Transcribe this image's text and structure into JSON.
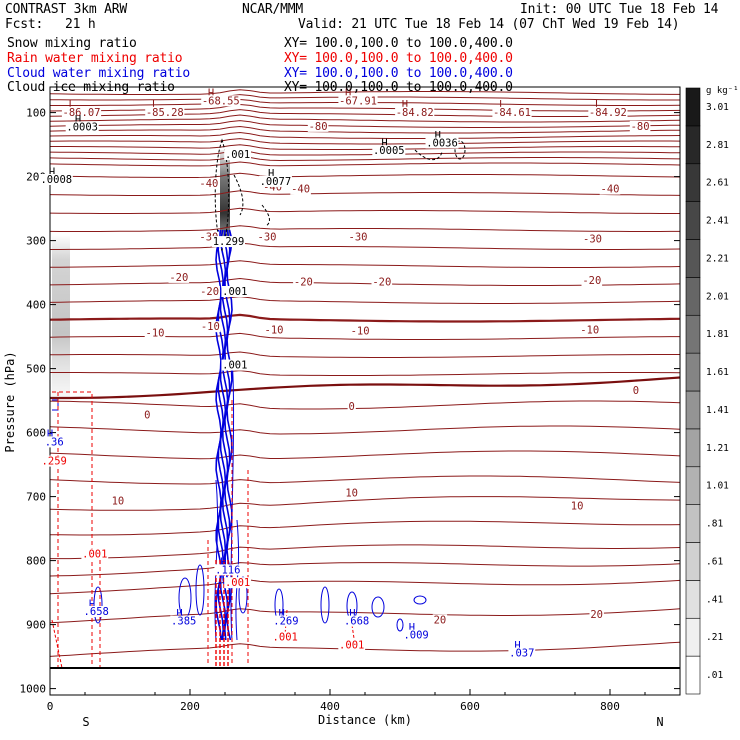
{
  "header": {
    "model": "CONTRAST  3km ARW",
    "center": "NCAR/MMM",
    "init": "Init: 00 UTC Tue 18 Feb 14",
    "fcst_label": "Fcst:",
    "fcst_value": "21 h",
    "valid": "Valid: 21 UTC Tue 18 Feb 14 (07 ChT Wed 19 Feb 14)"
  },
  "legend": [
    {
      "label": "Snow mixing ratio",
      "xy": "",
      "color": "#000000"
    },
    {
      "label": "Rain water mixing ratio",
      "xy": "XY= 100.0,100.0 to 100.0,400.0",
      "color": "#ee0000"
    },
    {
      "label": "Cloud water mixing ratio",
      "xy": "XY= 100.0,100.0 to 100.0,400.0",
      "color": "#0000dd"
    },
    {
      "label": "Cloud ice mixing ratio",
      "xy": "XY= 100.0,100.0 to 100.0,400.0",
      "color": "#000000"
    }
  ],
  "snow_xy": "XY= 100.0,100.0 to 100.0,400.0",
  "chart_data": {
    "type": "contour-cross-section",
    "xlabel": "Distance (km)",
    "ylabel": "Pressure (hPa)",
    "xlim": [
      0,
      900
    ],
    "ylim": [
      1010,
      60
    ],
    "x_ticks": [
      0,
      200,
      400,
      600,
      800
    ],
    "y_ticks": [
      100,
      200,
      300,
      400,
      500,
      600,
      700,
      800,
      900,
      1000
    ],
    "end_labels": {
      "left": "S",
      "right": "N"
    },
    "colorbar": {
      "unit": "g kg⁻¹",
      "levels": [
        ".01",
        ".21",
        ".41",
        ".61",
        ".81",
        "1.01",
        "1.21",
        "1.41",
        "1.61",
        "1.81",
        "2.01",
        "2.21",
        "2.41",
        "2.61",
        "2.81",
        "3.01"
      ]
    },
    "temperature_contours": [
      {
        "label": "-80",
        "label_x": 383,
        "label_p": 127
      },
      {
        "label": "-80",
        "label_x": 843,
        "label_p": 127
      },
      {
        "label": "-40",
        "label_x": 227,
        "label_p": 216
      },
      {
        "label": "-40",
        "label_x": 318,
        "label_p": 222
      },
      {
        "label": "-40",
        "label_x": 358,
        "label_p": 225
      },
      {
        "label": "-40",
        "label_x": 800,
        "label_p": 225
      },
      {
        "label": "-30",
        "label_x": 227,
        "label_p": 300
      },
      {
        "label": "-30",
        "label_x": 310,
        "label_p": 300
      },
      {
        "label": "-30",
        "label_x": 440,
        "label_p": 300
      },
      {
        "label": "-30",
        "label_x": 775,
        "label_p": 303
      },
      {
        "label": "-20",
        "label_x": 184,
        "label_p": 363
      },
      {
        "label": "-20",
        "label_x": 228,
        "label_p": 385
      },
      {
        "label": "-20",
        "label_x": 362,
        "label_p": 370
      },
      {
        "label": "-20",
        "label_x": 474,
        "label_p": 370
      },
      {
        "label": "-20",
        "label_x": 774,
        "label_p": 368
      },
      {
        "label": "-10",
        "label_x": 150,
        "label_p": 450
      },
      {
        "label": "-10",
        "label_x": 229,
        "label_p": 440
      },
      {
        "label": "-10",
        "label_x": 320,
        "label_p": 445
      },
      {
        "label": "-10",
        "label_x": 443,
        "label_p": 447
      },
      {
        "label": "-10",
        "label_x": 771,
        "label_p": 445
      },
      {
        "label": "0",
        "label_x": 139,
        "label_p": 578
      },
      {
        "label": "0",
        "label_x": 431,
        "label_p": 565
      },
      {
        "label": "0",
        "label_x": 837,
        "label_p": 540
      },
      {
        "label": "10",
        "label_x": 97,
        "label_p": 712
      },
      {
        "label": "10",
        "label_x": 431,
        "label_p": 700
      },
      {
        "label": "10",
        "label_x": 753,
        "label_p": 720
      },
      {
        "label": "20",
        "label_x": 557,
        "label_p": 898
      },
      {
        "label": "20",
        "label_x": 781,
        "label_p": 890
      }
    ],
    "extrema": [
      {
        "kind": "L",
        "value": "-86.07",
        "x": 31,
        "p": 103
      },
      {
        "kind": "L",
        "value": "-85.28",
        "x": 150,
        "p": 103
      },
      {
        "kind": "H",
        "value": "-68.55",
        "x": 230,
        "p": 85
      },
      {
        "kind": "H",
        "value": "-67.91",
        "x": 426,
        "p": 85
      },
      {
        "kind": "H",
        "value": "-84.82",
        "x": 507,
        "p": 103
      },
      {
        "kind": "L",
        "value": "-84.61",
        "x": 646,
        "p": 103
      },
      {
        "kind": "L",
        "value": "-84.92",
        "x": 783,
        "p": 103
      }
    ],
    "snow_maxima": [
      {
        "value": ".0003",
        "x": 40,
        "p": 128
      },
      {
        "value": ".0005",
        "x": 478,
        "p": 165
      },
      {
        "value": ".0036",
        "x": 554,
        "p": 153
      },
      {
        "value": ".0077",
        "x": 316,
        "p": 213
      },
      {
        "value": ".0008",
        "x": 3,
        "p": 210
      }
    ],
    "ice_labels": [
      {
        "value": ".001",
        "x": 268,
        "p": 171
      },
      {
        "value": "1.299",
        "x": 255,
        "p": 307
      },
      {
        "value": ".001",
        "x": 264,
        "p": 385
      },
      {
        "value": ".001",
        "x": 264,
        "p": 500
      }
    ],
    "cloud_water_maxima": [
      {
        "value": ".658",
        "x": 60,
        "p": 885
      },
      {
        "value": ".385",
        "x": 185,
        "p": 900
      },
      {
        "value": ".269",
        "x": 331,
        "p": 900
      },
      {
        "value": ".668",
        "x": 432,
        "p": 900
      },
      {
        "value": ".009",
        "x": 517,
        "p": 922
      },
      {
        "value": ".037",
        "x": 668,
        "p": 950
      },
      {
        "value": ".36",
        "x": 0,
        "p": 620
      },
      {
        "value": ".116",
        "x": 248,
        "p": 820
      }
    ],
    "rain_maxima": [
      {
        "value": ".001",
        "x": 58,
        "p": 795
      },
      {
        "value": ".001",
        "x": 330,
        "p": 925
      },
      {
        "value": ".001",
        "x": 425,
        "p": 937
      },
      {
        "value": ".001",
        "x": 262,
        "p": 840
      },
      {
        "value": ".259",
        "x": 0,
        "p": 650
      }
    ]
  }
}
